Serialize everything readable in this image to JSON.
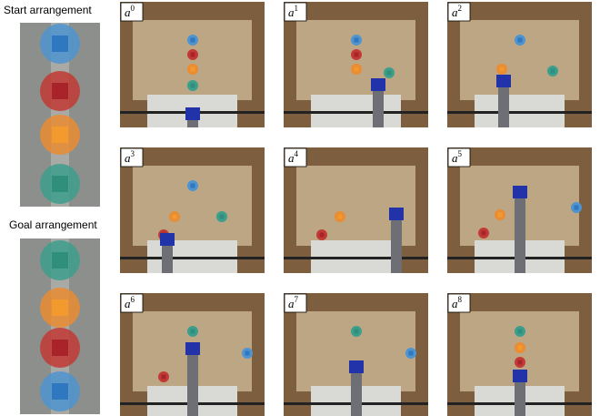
{
  "start_label": "Start arrangement",
  "goal_label": "Goal arrangement",
  "panels": [
    {
      "label": "a",
      "superscript": "0"
    },
    {
      "label": "a",
      "superscript": "1"
    },
    {
      "label": "a",
      "superscript": "2"
    },
    {
      "label": "a",
      "superscript": "3"
    },
    {
      "label": "a",
      "superscript": "4"
    },
    {
      "label": "a",
      "superscript": "5"
    },
    {
      "label": "a",
      "superscript": "6"
    },
    {
      "label": "a",
      "superscript": "7"
    },
    {
      "label": "a",
      "superscript": "8"
    }
  ]
}
